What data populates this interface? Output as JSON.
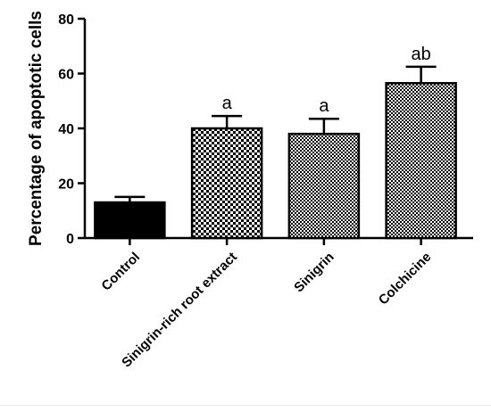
{
  "chart_data": {
    "type": "bar",
    "title": "",
    "xlabel": "",
    "ylabel": "Percentage of apoptotic cells",
    "ylim": [
      0,
      80
    ],
    "yticks": [
      "0",
      "20",
      "40",
      "60",
      "80"
    ],
    "grid": false,
    "legend": "none",
    "categories": [
      "Control",
      "Sinigrin-rich root extract",
      "Sinigrin",
      "Colchicine"
    ],
    "values": [
      13,
      40,
      38,
      56.5
    ],
    "errors": [
      2,
      4.5,
      5.5,
      6
    ],
    "annotations": [
      "",
      "a",
      "a",
      "ab"
    ],
    "fills": [
      "solid",
      "checker",
      "fine-checker",
      "fine-checker"
    ],
    "bar_color": "#000000"
  }
}
